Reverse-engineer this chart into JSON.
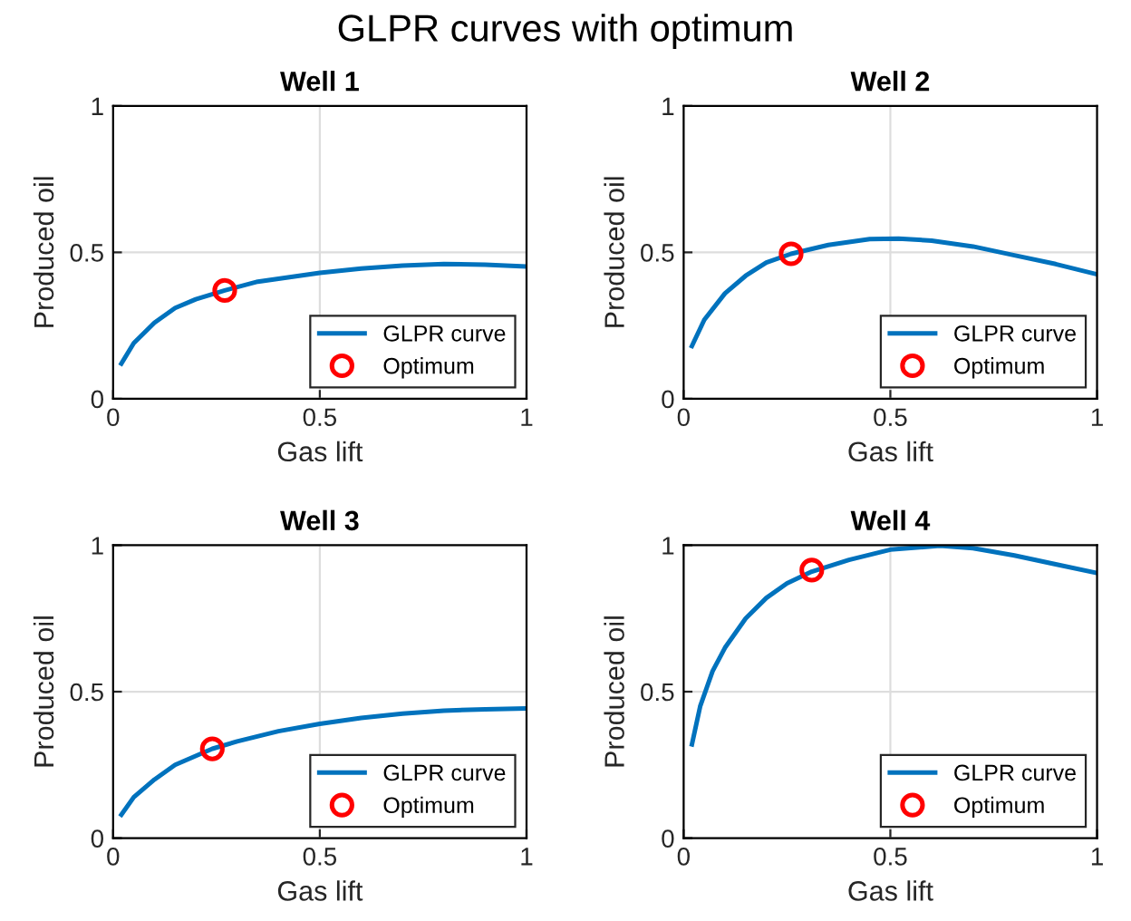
{
  "chart_data": [
    {
      "type": "line",
      "title": "Well 1",
      "xlabel": "Gas lift",
      "ylabel": "Produced oil",
      "annotations": [
        "GLPR curves with optimum"
      ],
      "xlim": [
        0,
        1
      ],
      "ylim": [
        0,
        1
      ],
      "xticks": [
        0,
        0.5,
        1
      ],
      "yticks": [
        0,
        0.5,
        1
      ],
      "grid": true,
      "legend": "bottom right",
      "series": [
        {
          "name": "GLPR curve",
          "color": "#0072bd",
          "x": [
            0.02,
            0.05,
            0.1,
            0.15,
            0.2,
            0.27,
            0.35,
            0.5,
            0.6,
            0.7,
            0.8,
            0.9,
            1.0
          ],
          "values": [
            0.12,
            0.19,
            0.26,
            0.31,
            0.34,
            0.37,
            0.4,
            0.43,
            0.445,
            0.455,
            0.46,
            0.458,
            0.452
          ]
        },
        {
          "name": "Optimum",
          "type": "scatter",
          "color": "#ff0000",
          "marker": "circle",
          "x": [
            0.27
          ],
          "values": [
            0.37
          ]
        }
      ]
    },
    {
      "type": "line",
      "title": "Well 2",
      "xlabel": "Gas lift",
      "ylabel": "Produced oil",
      "xlim": [
        0,
        1
      ],
      "ylim": [
        0,
        1
      ],
      "xticks": [
        0,
        0.5,
        1
      ],
      "yticks": [
        0,
        0.5,
        1
      ],
      "grid": true,
      "legend": "bottom right",
      "series": [
        {
          "name": "GLPR curve",
          "color": "#0072bd",
          "x": [
            0.02,
            0.05,
            0.1,
            0.15,
            0.2,
            0.26,
            0.35,
            0.45,
            0.52,
            0.6,
            0.7,
            0.8,
            0.9,
            1.0
          ],
          "values": [
            0.18,
            0.27,
            0.36,
            0.42,
            0.465,
            0.495,
            0.525,
            0.545,
            0.547,
            0.54,
            0.52,
            0.49,
            0.46,
            0.425
          ]
        },
        {
          "name": "Optimum",
          "type": "scatter",
          "color": "#ff0000",
          "marker": "circle",
          "x": [
            0.26
          ],
          "values": [
            0.495
          ]
        }
      ]
    },
    {
      "type": "line",
      "title": "Well 3",
      "xlabel": "Gas lift",
      "ylabel": "Produced oil",
      "xlim": [
        0,
        1
      ],
      "ylim": [
        0,
        1
      ],
      "xticks": [
        0,
        0.5,
        1
      ],
      "yticks": [
        0,
        0.5,
        1
      ],
      "grid": true,
      "legend": "bottom right",
      "series": [
        {
          "name": "GLPR curve",
          "color": "#0072bd",
          "x": [
            0.02,
            0.05,
            0.1,
            0.15,
            0.24,
            0.3,
            0.4,
            0.5,
            0.6,
            0.7,
            0.8,
            0.9,
            1.0
          ],
          "values": [
            0.08,
            0.14,
            0.2,
            0.25,
            0.305,
            0.33,
            0.365,
            0.39,
            0.41,
            0.425,
            0.435,
            0.44,
            0.443
          ]
        },
        {
          "name": "Optimum",
          "type": "scatter",
          "color": "#ff0000",
          "marker": "circle",
          "x": [
            0.24
          ],
          "values": [
            0.305
          ]
        }
      ]
    },
    {
      "type": "line",
      "title": "Well 4",
      "xlabel": "Gas lift",
      "ylabel": "Produced oil",
      "xlim": [
        0,
        1
      ],
      "ylim": [
        0,
        1
      ],
      "xticks": [
        0,
        0.5,
        1
      ],
      "yticks": [
        0,
        0.5,
        1
      ],
      "grid": true,
      "legend": "bottom right",
      "series": [
        {
          "name": "GLPR curve",
          "color": "#0072bd",
          "x": [
            0.02,
            0.04,
            0.07,
            0.1,
            0.15,
            0.2,
            0.25,
            0.31,
            0.4,
            0.5,
            0.62,
            0.7,
            0.8,
            0.9,
            1.0
          ],
          "values": [
            0.32,
            0.45,
            0.57,
            0.65,
            0.75,
            0.82,
            0.87,
            0.91,
            0.95,
            0.985,
            0.998,
            0.99,
            0.965,
            0.935,
            0.905
          ]
        },
        {
          "name": "Optimum",
          "type": "scatter",
          "color": "#ff0000",
          "marker": "circle",
          "x": [
            0.31
          ],
          "values": [
            0.915
          ]
        }
      ]
    }
  ]
}
